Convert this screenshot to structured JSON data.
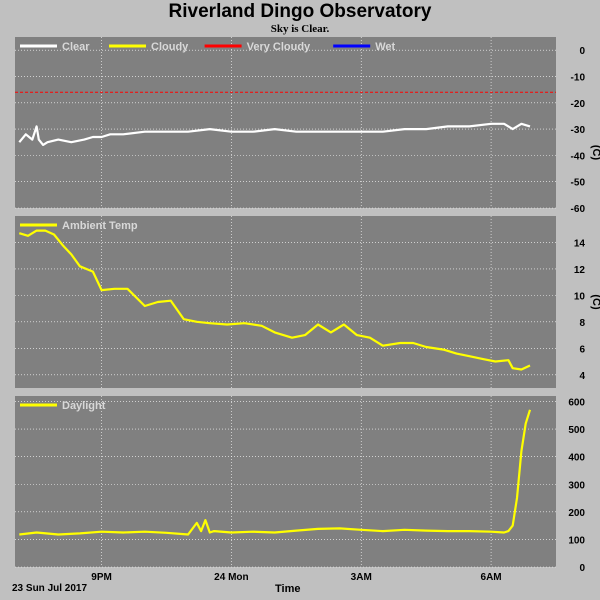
{
  "page": {
    "title": "Riverland Dingo Observatory",
    "subtitle": "Sky is Clear.",
    "date_label": "23 Sun Jul 2017",
    "time_label": "Time"
  },
  "colors": {
    "background": "#c0c0c0",
    "panel": "#808080",
    "clear": "#ffffff",
    "cloudy": "#ffff00",
    "very_cloudy": "#ff0000",
    "wet": "#0000ff"
  },
  "chart_data": [
    {
      "type": "line",
      "legend": [
        "Clear",
        "Cloudy",
        "Very Cloudy",
        "Wet"
      ],
      "ylabel": "(C)",
      "ylim": [
        -60,
        5
      ],
      "yticks": [
        0,
        -10,
        -20,
        -30,
        -40,
        -50,
        -60
      ],
      "xlim": [
        19.0,
        31.5
      ],
      "xticks": [
        {
          "x": 21,
          "label": "9PM"
        },
        {
          "x": 24,
          "label": "24 Mon"
        },
        {
          "x": 27,
          "label": "3AM"
        },
        {
          "x": 30,
          "label": "6AM"
        }
      ],
      "threshold": {
        "name": "Very Cloudy",
        "value": -16
      },
      "series": [
        {
          "name": "Clear",
          "x": [
            19.1,
            19.25,
            19.4,
            19.5,
            19.55,
            19.65,
            19.75,
            20.0,
            20.3,
            20.6,
            20.8,
            21.0,
            21.2,
            21.5,
            22.0,
            22.5,
            23.0,
            23.5,
            24.0,
            24.5,
            25.0,
            25.5,
            26.0,
            26.5,
            27.0,
            27.5,
            28.0,
            28.5,
            29.0,
            29.5,
            30.0,
            30.3,
            30.5,
            30.7,
            30.9
          ],
          "y": [
            -35,
            -32,
            -34,
            -29,
            -34,
            -36,
            -35,
            -34,
            -35,
            -34,
            -33,
            -33,
            -32,
            -32,
            -31,
            -31,
            -31,
            -30,
            -31,
            -31,
            -30,
            -31,
            -31,
            -31,
            -31,
            -31,
            -30,
            -30,
            -29,
            -29,
            -28,
            -28,
            -30,
            -28,
            -29
          ]
        }
      ]
    },
    {
      "type": "line",
      "legend": [
        "Ambient Temp"
      ],
      "ylabel": "(C)",
      "ylim": [
        3,
        16
      ],
      "yticks": [
        4,
        6,
        8,
        10,
        12,
        14
      ],
      "xlim": [
        19.0,
        31.5
      ],
      "series": [
        {
          "name": "Ambient Temp",
          "x": [
            19.1,
            19.3,
            19.5,
            19.7,
            19.9,
            20.1,
            20.3,
            20.5,
            20.8,
            21.0,
            21.3,
            21.6,
            22.0,
            22.3,
            22.6,
            22.9,
            23.2,
            23.5,
            23.9,
            24.3,
            24.7,
            25.0,
            25.4,
            25.7,
            26.0,
            26.3,
            26.6,
            26.9,
            27.2,
            27.5,
            27.9,
            28.2,
            28.5,
            28.9,
            29.2,
            29.5,
            29.8,
            30.1,
            30.4,
            30.5,
            30.7,
            30.9
          ],
          "y": [
            14.7,
            14.5,
            14.9,
            14.9,
            14.6,
            13.8,
            13.1,
            12.2,
            11.8,
            10.4,
            10.5,
            10.5,
            9.2,
            9.5,
            9.6,
            8.2,
            8.0,
            7.9,
            7.8,
            7.9,
            7.7,
            7.2,
            6.8,
            7.0,
            7.8,
            7.2,
            7.8,
            7.0,
            6.8,
            6.2,
            6.4,
            6.4,
            6.1,
            5.9,
            5.6,
            5.4,
            5.2,
            5.0,
            5.1,
            4.5,
            4.4,
            4.7
          ]
        }
      ]
    },
    {
      "type": "line",
      "legend": [
        "Daylight"
      ],
      "ylabel": "",
      "ylim": [
        0,
        620
      ],
      "yticks": [
        0,
        100,
        200,
        300,
        400,
        500,
        600
      ],
      "xlim": [
        19.0,
        31.5
      ],
      "series": [
        {
          "name": "Daylight",
          "x": [
            19.1,
            19.5,
            20.0,
            20.5,
            21.0,
            21.5,
            22.0,
            22.5,
            23.0,
            23.2,
            23.3,
            23.4,
            23.5,
            23.6,
            24.0,
            24.5,
            25.0,
            25.5,
            26.0,
            26.5,
            27.0,
            27.5,
            28.0,
            28.5,
            29.0,
            29.5,
            30.0,
            30.3,
            30.4,
            30.5,
            30.6,
            30.7,
            30.8,
            30.9
          ],
          "y": [
            118,
            125,
            118,
            122,
            128,
            125,
            128,
            124,
            118,
            160,
            130,
            170,
            125,
            130,
            125,
            128,
            125,
            132,
            138,
            140,
            135,
            130,
            135,
            132,
            130,
            130,
            128,
            125,
            130,
            150,
            250,
            420,
            520,
            570
          ]
        }
      ]
    }
  ]
}
